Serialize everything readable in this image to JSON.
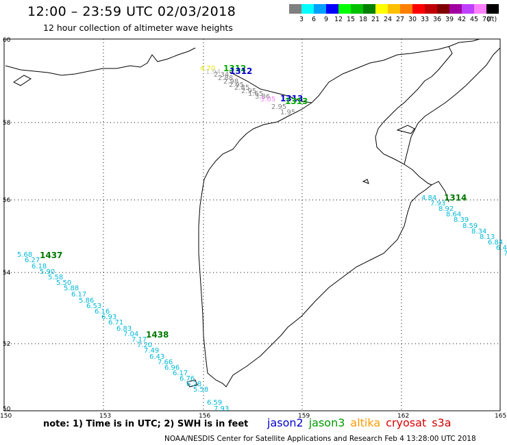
{
  "header": {
    "title": "12:00 – 23:59 UTC 02/03/2018",
    "subtitle": "12 hour collection of altimeter wave heights"
  },
  "legend": {
    "unit": "(ft)",
    "bins": [
      {
        "label": "3",
        "color": "#808080"
      },
      {
        "label": "6",
        "color": "#00ffff"
      },
      {
        "label": "9",
        "color": "#00a0ff"
      },
      {
        "label": "12",
        "color": "#0000ff"
      },
      {
        "label": "15",
        "color": "#00ff00"
      },
      {
        "label": "18",
        "color": "#00c000"
      },
      {
        "label": "21",
        "color": "#008000"
      },
      {
        "label": "24",
        "color": "#ffff00"
      },
      {
        "label": "27",
        "color": "#ffc000"
      },
      {
        "label": "30",
        "color": "#ff8000"
      },
      {
        "label": "33",
        "color": "#ff0000"
      },
      {
        "label": "36",
        "color": "#c00000"
      },
      {
        "label": "39",
        "color": "#800000"
      },
      {
        "label": "42",
        "color": "#a000a0"
      },
      {
        "label": "45",
        "color": "#c040ff"
      },
      {
        "label": "70",
        "color": "#ff80ff"
      },
      {
        "label": "",
        "color": "#000000"
      }
    ]
  },
  "map": {
    "lat_labels": [
      "60",
      "58",
      "56",
      "54",
      "52",
      "50"
    ],
    "lon_labels": [
      "150",
      "153",
      "156",
      "159",
      "162",
      "165"
    ],
    "passes": [
      {
        "time": "1312",
        "color": "#00aa00"
      },
      {
        "time": "1312",
        "color": "#0000cc"
      },
      {
        "time": "1313",
        "color": "#0000cc"
      },
      {
        "time": "1313",
        "color": "#00aa00"
      },
      {
        "time": "1314",
        "color": "#007700"
      },
      {
        "time": "1437",
        "color": "#007700"
      },
      {
        "time": "1438",
        "color": "#007700"
      }
    ],
    "swh_track_sw": [
      "5.68",
      "6.27",
      "6.18",
      "5.90",
      "5.58",
      "5.50",
      "5.88",
      "6.17",
      "5.86",
      "6.53",
      "6.16",
      "6.93",
      "6.71",
      "6.83",
      "7.04",
      "7.17",
      "7.20",
      "7.49",
      "6.43",
      "7.66",
      "6.96",
      "6.17",
      "6.76",
      "6.28",
      "5.58"
    ],
    "swh_track_sw_end": [
      "6.59",
      "7.93"
    ],
    "swh_track_e": [
      "4.84",
      "7.93",
      "8.92",
      "8.64",
      "8.39",
      "8.59",
      "8.34",
      "8.13",
      "6.84",
      "6.4",
      "7"
    ],
    "swh_track_n": [
      "4.70",
      "1.94",
      "2.34",
      "2.88",
      "2.98",
      "2.95",
      "2.85",
      "2.95",
      "1.65",
      "3.86",
      "3.05",
      "2.95",
      "1.95"
    ]
  },
  "note": "note:  1) Time is in UTC;  2) SWH is in feet",
  "missions": [
    {
      "name": "jason2",
      "color": "#0000cc"
    },
    {
      "name": "jason3",
      "color": "#009900"
    },
    {
      "name": "altika",
      "color": "#ff9900"
    },
    {
      "name": "cryosat",
      "color": "#dd0000"
    },
    {
      "name": "s3a",
      "color": "#cc0000"
    }
  ],
  "footer": "NOAA/NESDIS Center for Satellite Applications and Research   Feb  4 13:28:00 UTC 2018"
}
